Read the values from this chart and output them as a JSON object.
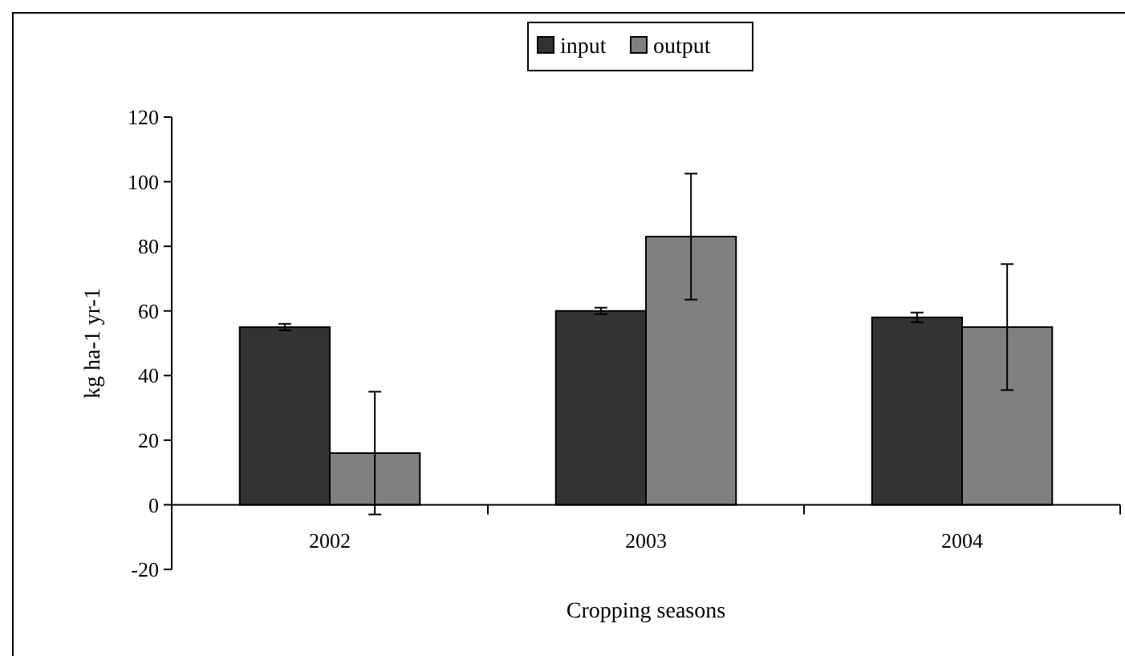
{
  "chart_data": {
    "type": "bar",
    "xlabel": "Cropping seasons",
    "ylabel": "kg ha-1 yr-1",
    "categories": [
      "2002",
      "2003",
      "2004"
    ],
    "series": [
      {
        "name": "input",
        "color": "#333333",
        "values": [
          55,
          60,
          58
        ],
        "errors": [
          1,
          1,
          1.5
        ]
      },
      {
        "name": "output",
        "color": "#808080",
        "values": [
          16,
          83,
          55
        ],
        "errors": [
          19,
          19.5,
          19.5
        ]
      }
    ],
    "ylim": [
      -20,
      120
    ],
    "yticks": [
      -20,
      0,
      20,
      40,
      60,
      80,
      100,
      120
    ],
    "grid": false,
    "legend": "top"
  }
}
